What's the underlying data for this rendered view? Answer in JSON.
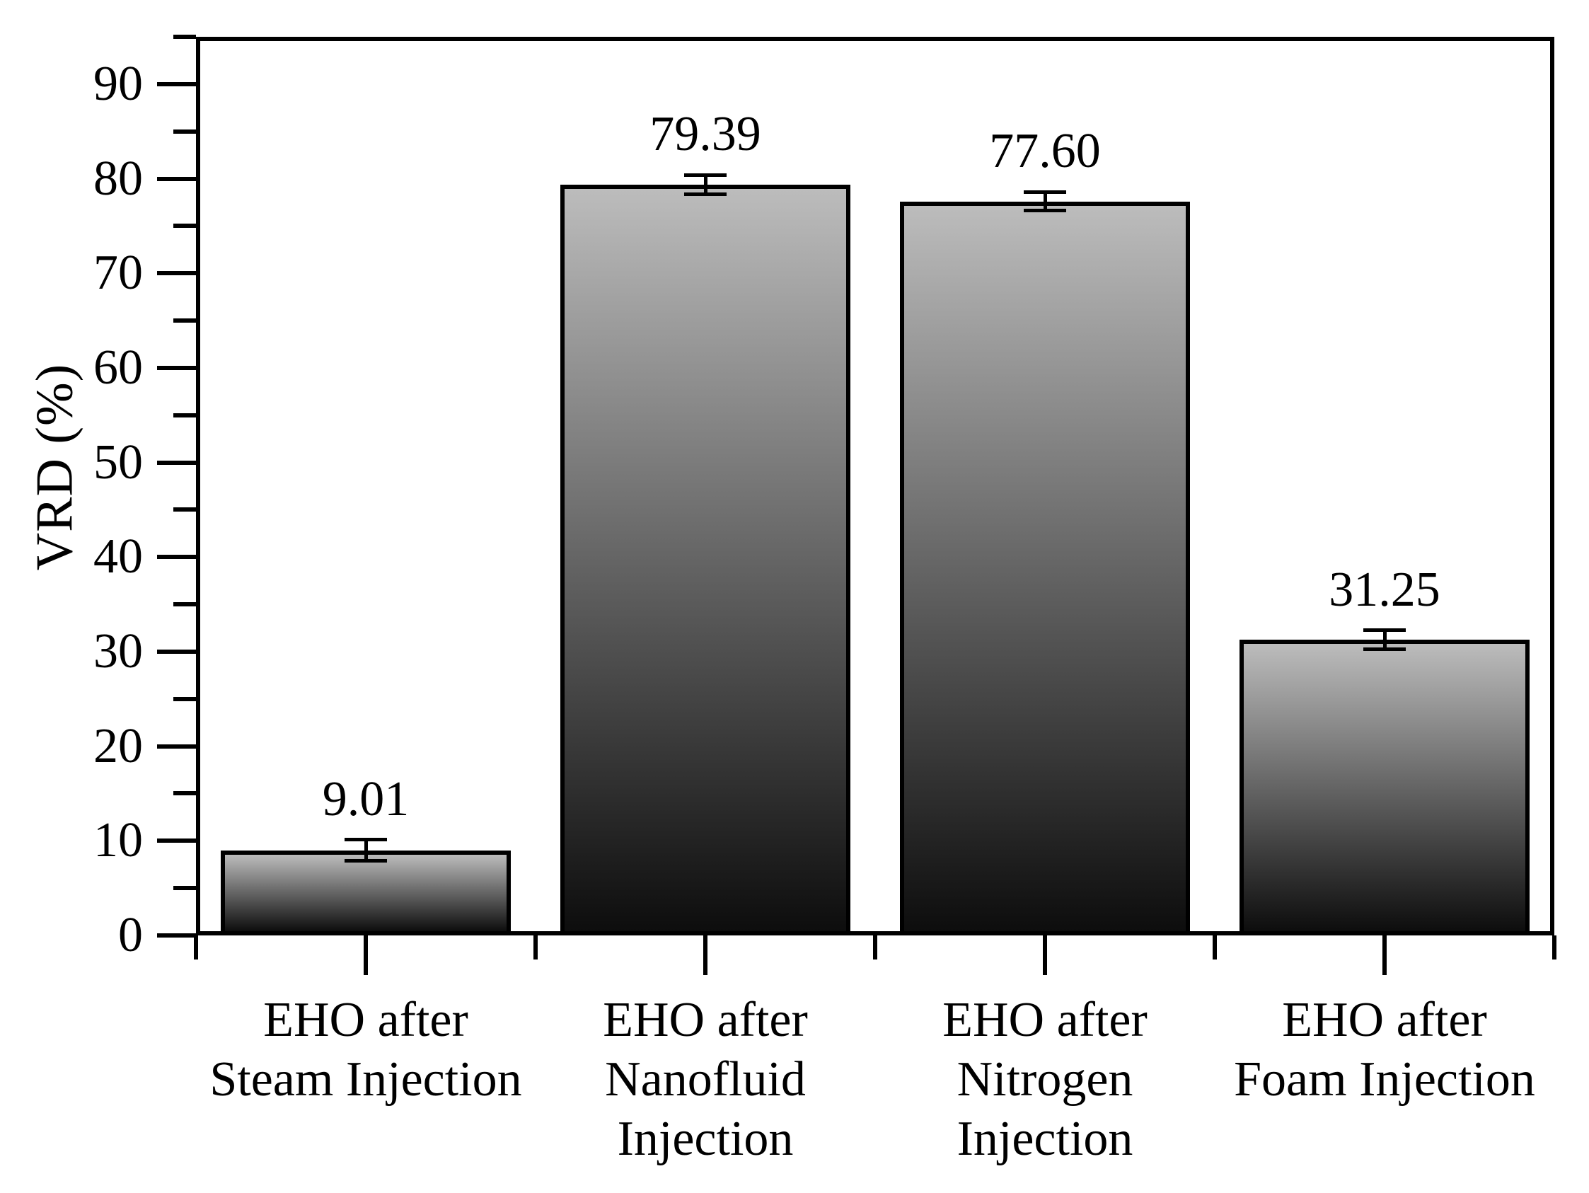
{
  "figure": {
    "background": "#ffffff"
  },
  "chart_data": {
    "type": "bar",
    "title": "",
    "xlabel": "",
    "ylabel": "VRD (%)",
    "categories": [
      [
        "EHO after",
        "Steam Injection"
      ],
      [
        "EHO after",
        "Nanofluid",
        "Injection"
      ],
      [
        "EHO after",
        "Nitrogen",
        "Injection"
      ],
      [
        "EHO after",
        "Foam Injection"
      ]
    ],
    "values": [
      9.01,
      79.39,
      77.6,
      31.25
    ],
    "value_labels": [
      "9.01",
      "79.39",
      "77.60",
      "31.25"
    ],
    "error_bars": [
      1.1,
      1.0,
      1.0,
      1.0
    ],
    "ylim": [
      0,
      95
    ],
    "ytick_major": [
      0,
      10,
      20,
      30,
      40,
      50,
      60,
      70,
      80,
      90
    ],
    "ytick_minor": [
      5,
      15,
      25,
      35,
      45,
      55,
      65,
      75,
      85,
      95
    ],
    "grid": false,
    "legend": "none",
    "bar_gradient_top": "#bcbcbc",
    "bar_gradient_bottom": "#0d0d0d",
    "bar_border_color": "#000000",
    "axis_color": "#000000",
    "text_color": "#000000"
  }
}
